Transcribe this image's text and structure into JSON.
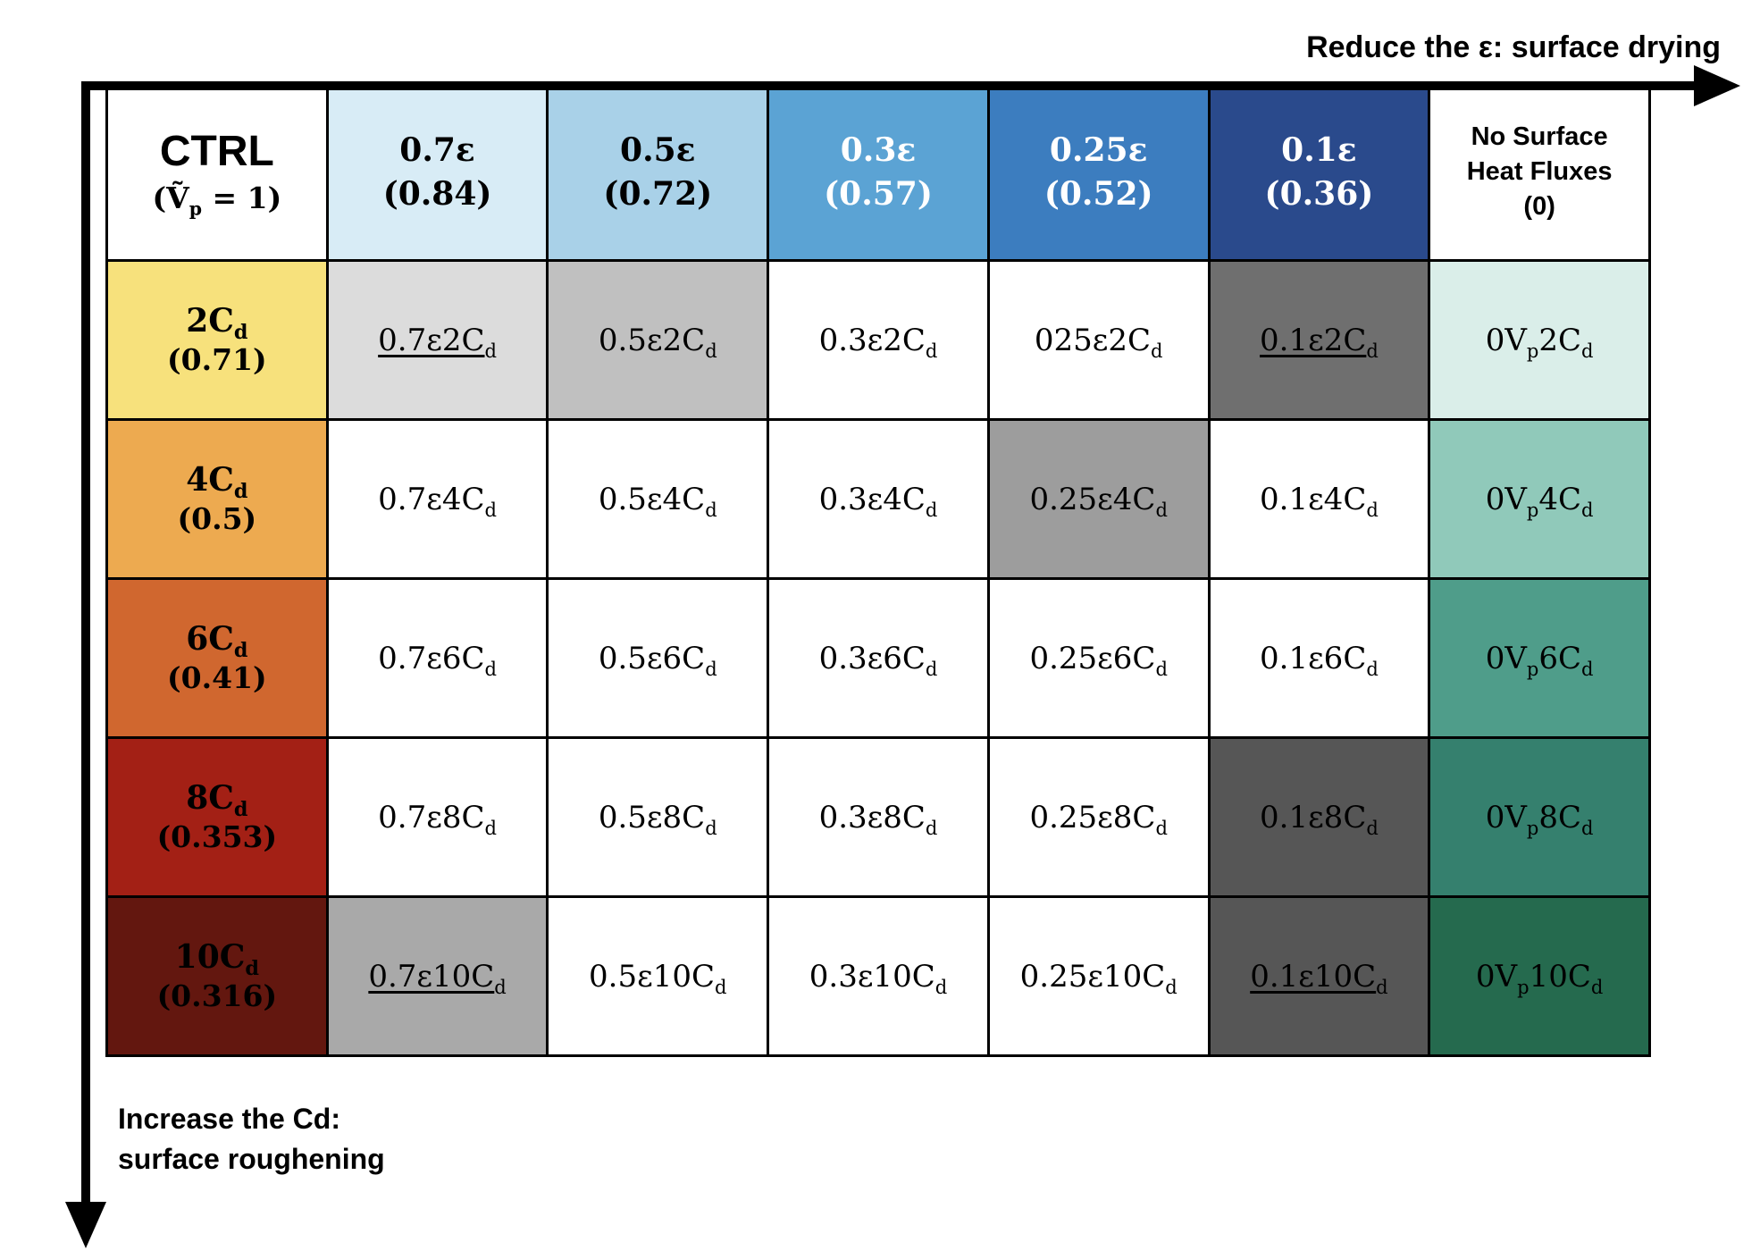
{
  "axes": {
    "top_label": "Reduce the ε: surface drying",
    "left_label_line1": "Increase the Cd:",
    "left_label_line2": "surface roughening"
  },
  "matrix": {
    "header": [
      {
        "key": "ctrl",
        "type": "ctrl",
        "bg": "#ffffff",
        "fg": "#000000",
        "title": "CTRL",
        "sub_parts": [
          {
            "t": "(Ṽ"
          },
          {
            "s": "p"
          },
          {
            "t": " = 1)"
          }
        ]
      },
      {
        "key": "0.7eps",
        "type": "eps",
        "bg": "#d8ecf6",
        "fg": "#000000",
        "lines": [
          "0.7ε",
          "(0.84)"
        ]
      },
      {
        "key": "0.5eps",
        "type": "eps",
        "bg": "#a9d1e8",
        "fg": "#000000",
        "lines": [
          "0.5ε",
          "(0.72)"
        ]
      },
      {
        "key": "0.3eps",
        "type": "eps",
        "bg": "#5ba3d4",
        "fg": "#ffffff",
        "lines": [
          "0.3ε",
          "(0.57)"
        ]
      },
      {
        "key": "0.25eps",
        "type": "eps",
        "bg": "#3c7dbf",
        "fg": "#ffffff",
        "lines": [
          "0.25ε",
          "(0.52)"
        ]
      },
      {
        "key": "0.1eps",
        "type": "eps",
        "bg": "#2a4a8c",
        "fg": "#ffffff",
        "lines": [
          "0.1ε",
          "(0.36)"
        ]
      },
      {
        "key": "no-surface-heat-fluxes",
        "type": "nsf",
        "bg": "#ffffff",
        "fg": "#000000",
        "lines": [
          "No Surface",
          "Heat Fluxes",
          "(0)"
        ]
      }
    ],
    "rows": [
      {
        "key": "2Cd",
        "header": {
          "bg": "#f7e17c",
          "fg": "#000000",
          "line1_parts": [
            {
              "t": "2C"
            },
            {
              "s": "d"
            }
          ],
          "line2": "(0.71)"
        },
        "cells": [
          {
            "key": "0.7e2Cd",
            "parts": [
              {
                "t": "0.7ε2C"
              },
              {
                "s": "d"
              }
            ],
            "bg": "#dcdcdc",
            "underline": true
          },
          {
            "key": "0.5e2Cd",
            "parts": [
              {
                "t": "0.5ε2C"
              },
              {
                "s": "d"
              }
            ],
            "bg": "#c0c0c0",
            "underline": false
          },
          {
            "key": "0.3e2Cd",
            "parts": [
              {
                "t": "0.3ε2C"
              },
              {
                "s": "d"
              }
            ],
            "bg": "#ffffff",
            "underline": false
          },
          {
            "key": "025e2Cd",
            "parts": [
              {
                "t": "025ε2C"
              },
              {
                "s": "d"
              }
            ],
            "bg": "#ffffff",
            "underline": false
          },
          {
            "key": "0.1e2Cd",
            "parts": [
              {
                "t": "0.1ε2C"
              },
              {
                "s": "d"
              }
            ],
            "bg": "#6f6f6f",
            "underline": true
          },
          {
            "key": "0Vp2Cd",
            "parts": [
              {
                "t": "0V"
              },
              {
                "s": "p"
              },
              {
                "t": "2C"
              },
              {
                "s": "d"
              }
            ],
            "bg": "#daeee9",
            "underline": false
          }
        ]
      },
      {
        "key": "4Cd",
        "header": {
          "bg": "#edaa50",
          "fg": "#000000",
          "line1_parts": [
            {
              "t": "4C"
            },
            {
              "s": "d"
            }
          ],
          "line2": "(0.5)"
        },
        "cells": [
          {
            "key": "0.7e4Cd",
            "parts": [
              {
                "t": "0.7ε4C"
              },
              {
                "s": "d"
              }
            ],
            "bg": "#ffffff",
            "underline": false
          },
          {
            "key": "0.5e4Cd",
            "parts": [
              {
                "t": "0.5ε4C"
              },
              {
                "s": "d"
              }
            ],
            "bg": "#ffffff",
            "underline": false
          },
          {
            "key": "0.3e4Cd",
            "parts": [
              {
                "t": "0.3ε4C"
              },
              {
                "s": "d"
              }
            ],
            "bg": "#ffffff",
            "underline": false
          },
          {
            "key": "0.25e4Cd",
            "parts": [
              {
                "t": "0.25ε4C"
              },
              {
                "s": "d"
              }
            ],
            "bg": "#9d9d9d",
            "underline": false
          },
          {
            "key": "0.1e4Cd",
            "parts": [
              {
                "t": "0.1ε4C"
              },
              {
                "s": "d"
              }
            ],
            "bg": "#ffffff",
            "underline": false
          },
          {
            "key": "0Vp4Cd",
            "parts": [
              {
                "t": "0V"
              },
              {
                "s": "p"
              },
              {
                "t": "4C"
              },
              {
                "s": "d"
              }
            ],
            "bg": "#90c9ba",
            "underline": false
          }
        ]
      },
      {
        "key": "6Cd",
        "header": {
          "bg": "#d0672f",
          "fg": "#000000",
          "line1_parts": [
            {
              "t": "6C"
            },
            {
              "s": "d"
            }
          ],
          "line2": "(0.41)"
        },
        "cells": [
          {
            "key": "0.7e6Cd",
            "parts": [
              {
                "t": "0.7ε6C"
              },
              {
                "s": "d"
              }
            ],
            "bg": "#ffffff",
            "underline": false
          },
          {
            "key": "0.5e6Cd",
            "parts": [
              {
                "t": "0.5ε6C"
              },
              {
                "s": "d"
              }
            ],
            "bg": "#ffffff",
            "underline": false
          },
          {
            "key": "0.3e6Cd",
            "parts": [
              {
                "t": "0.3ε6C"
              },
              {
                "s": "d"
              }
            ],
            "bg": "#ffffff",
            "underline": false
          },
          {
            "key": "0.25e6Cd",
            "parts": [
              {
                "t": "0.25ε6C"
              },
              {
                "s": "d"
              }
            ],
            "bg": "#ffffff",
            "underline": false
          },
          {
            "key": "0.1e6Cd",
            "parts": [
              {
                "t": "0.1ε6C"
              },
              {
                "s": "d"
              }
            ],
            "bg": "#ffffff",
            "underline": false
          },
          {
            "key": "0Vp6Cd",
            "parts": [
              {
                "t": "0V"
              },
              {
                "s": "p"
              },
              {
                "t": "6C"
              },
              {
                "s": "d"
              }
            ],
            "bg": "#4f9d8a",
            "underline": false
          }
        ]
      },
      {
        "key": "8Cd",
        "header": {
          "bg": "#a32015",
          "fg": "#000000",
          "line1_parts": [
            {
              "t": "8C"
            },
            {
              "s": "d"
            }
          ],
          "line2": "(0.353)"
        },
        "cells": [
          {
            "key": "0.7e8Cd",
            "parts": [
              {
                "t": "0.7ε8C"
              },
              {
                "s": "d"
              }
            ],
            "bg": "#ffffff",
            "underline": false
          },
          {
            "key": "0.5e8Cd",
            "parts": [
              {
                "t": "0.5ε8C"
              },
              {
                "s": "d"
              }
            ],
            "bg": "#ffffff",
            "underline": false
          },
          {
            "key": "0.3e8Cd",
            "parts": [
              {
                "t": "0.3ε8C"
              },
              {
                "s": "d"
              }
            ],
            "bg": "#ffffff",
            "underline": false
          },
          {
            "key": "0.25e8Cd",
            "parts": [
              {
                "t": "0.25ε8C"
              },
              {
                "s": "d"
              }
            ],
            "bg": "#ffffff",
            "underline": false
          },
          {
            "key": "0.1e8Cd",
            "parts": [
              {
                "t": "0.1ε8C"
              },
              {
                "s": "d"
              }
            ],
            "bg": "#565656",
            "underline": false
          },
          {
            "key": "0Vp8Cd",
            "parts": [
              {
                "t": "0V"
              },
              {
                "s": "p"
              },
              {
                "t": "8C"
              },
              {
                "s": "d"
              }
            ],
            "bg": "#35806e",
            "underline": false
          }
        ]
      },
      {
        "key": "10Cd",
        "header": {
          "bg": "#63170f",
          "fg": "#000000",
          "line1_parts": [
            {
              "t": "10C"
            },
            {
              "s": "d"
            }
          ],
          "line2": "(0.316)"
        },
        "cells": [
          {
            "key": "0.7e10Cd",
            "parts": [
              {
                "t": "0.7ε10C"
              },
              {
                "s": "d"
              }
            ],
            "bg": "#a9a9a9",
            "underline": true
          },
          {
            "key": "0.5e10Cd",
            "parts": [
              {
                "t": "0.5ε10C"
              },
              {
                "s": "d"
              }
            ],
            "bg": "#ffffff",
            "underline": false
          },
          {
            "key": "0.3e10Cd",
            "parts": [
              {
                "t": "0.3ε10C"
              },
              {
                "s": "d"
              }
            ],
            "bg": "#ffffff",
            "underline": false
          },
          {
            "key": "0.25e10Cd",
            "parts": [
              {
                "t": "0.25ε10C"
              },
              {
                "s": "d"
              }
            ],
            "bg": "#ffffff",
            "underline": false
          },
          {
            "key": "0.1e10Cd",
            "parts": [
              {
                "t": "0.1ε10C"
              },
              {
                "s": "d"
              }
            ],
            "bg": "#565656",
            "underline": true
          },
          {
            "key": "0Vp10Cd",
            "parts": [
              {
                "t": "0V"
              },
              {
                "s": "p"
              },
              {
                "t": "10C"
              },
              {
                "s": "d"
              }
            ],
            "bg": "#256a4e",
            "underline": false
          }
        ]
      }
    ]
  }
}
